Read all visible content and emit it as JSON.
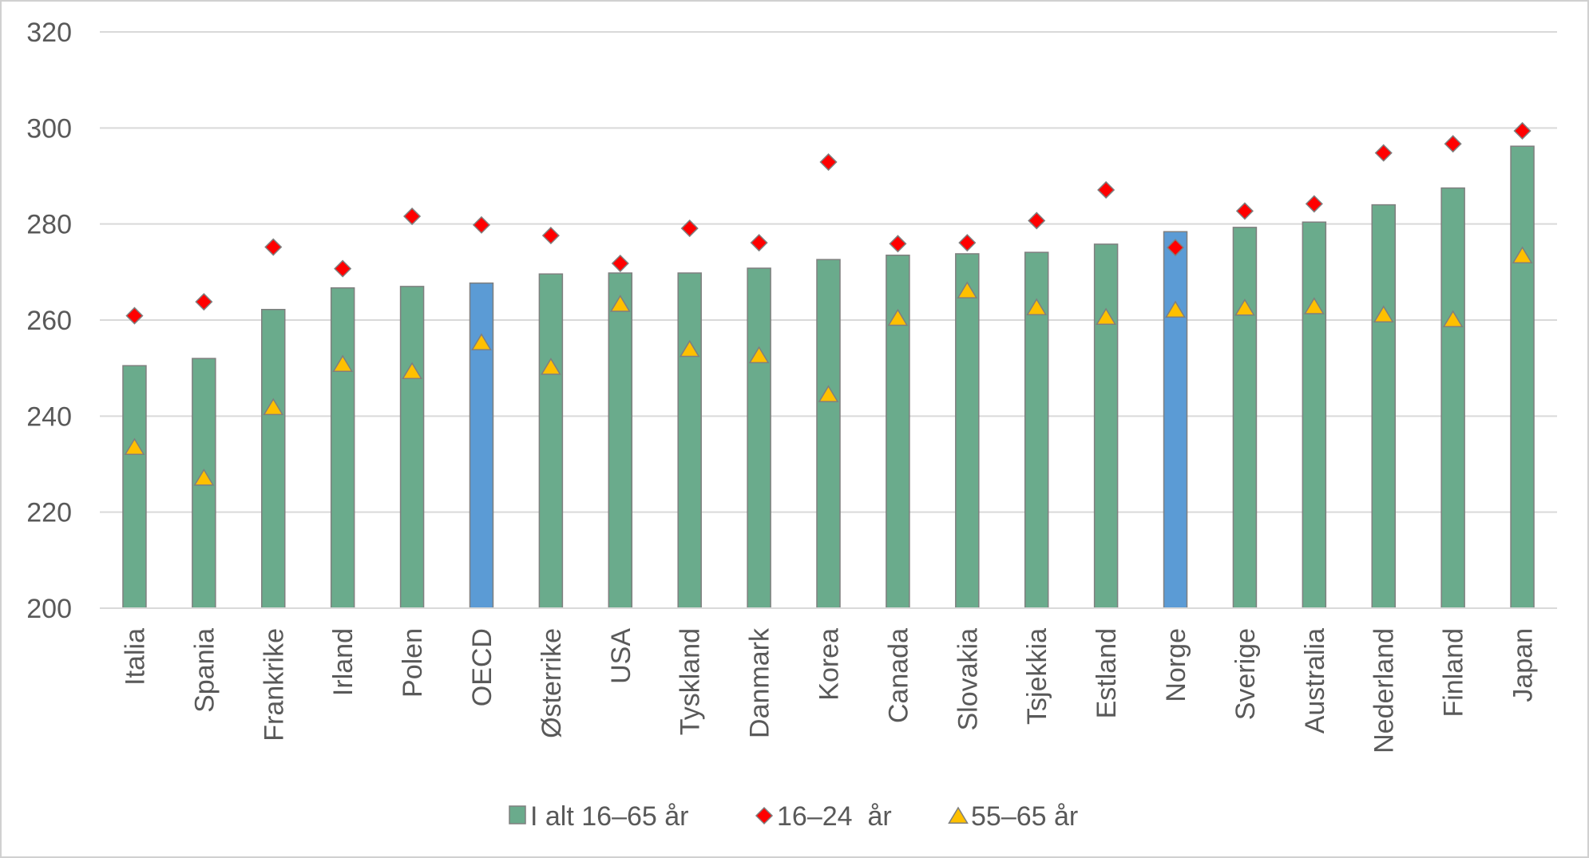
{
  "chart_data": {
    "type": "bar",
    "title": "",
    "xlabel": "",
    "ylabel": "",
    "ylim": [
      200,
      320
    ],
    "yticks": [
      200,
      220,
      240,
      260,
      280,
      300,
      320
    ],
    "grid": true,
    "legend_position": "bottom",
    "categories": [
      "Italia",
      "Spania",
      "Frankrike",
      "Irland",
      "Polen",
      "OECD",
      "Østerrike",
      "USA",
      "Tyskland",
      "Danmark",
      "Korea",
      "Canada",
      "Slovakia",
      "Tsjekkia",
      "Estland",
      "Norge",
      "Sverige",
      "Australia",
      "Nederland",
      "Finland",
      "Japan"
    ],
    "highlighted_categories": [
      "OECD",
      "Norge"
    ],
    "series": [
      {
        "name": "I alt 16–65 år",
        "type": "bar",
        "color": "#6aab8c",
        "highlight_color": "#5b9bd5",
        "values": [
          250.5,
          252,
          262.2,
          266.7,
          267,
          267.7,
          269.6,
          269.8,
          269.8,
          270.8,
          272.6,
          273.5,
          273.8,
          274.1,
          275.8,
          278.4,
          279.3,
          280.4,
          284,
          287.5,
          296.2
        ]
      },
      {
        "name": "16–24  år",
        "type": "marker",
        "marker": "diamond",
        "color": "#ff0000",
        "values": [
          260.9,
          263.8,
          275.2,
          270.7,
          281.6,
          279.8,
          277.6,
          271.8,
          279.1,
          276.1,
          292.9,
          275.9,
          276.1,
          280.7,
          287.1,
          275.1,
          282.7,
          284.2,
          294.8,
          296.7,
          299.4
        ]
      },
      {
        "name": "55–65 år",
        "type": "marker",
        "marker": "triangle",
        "color": "#ffc000",
        "values": [
          233.4,
          227,
          241.7,
          250.7,
          249.2,
          255.2,
          250.1,
          263.2,
          253.8,
          252.5,
          244.4,
          260.3,
          266,
          262.5,
          260.5,
          262,
          262.4,
          262.7,
          261,
          260,
          273.3
        ]
      }
    ]
  }
}
